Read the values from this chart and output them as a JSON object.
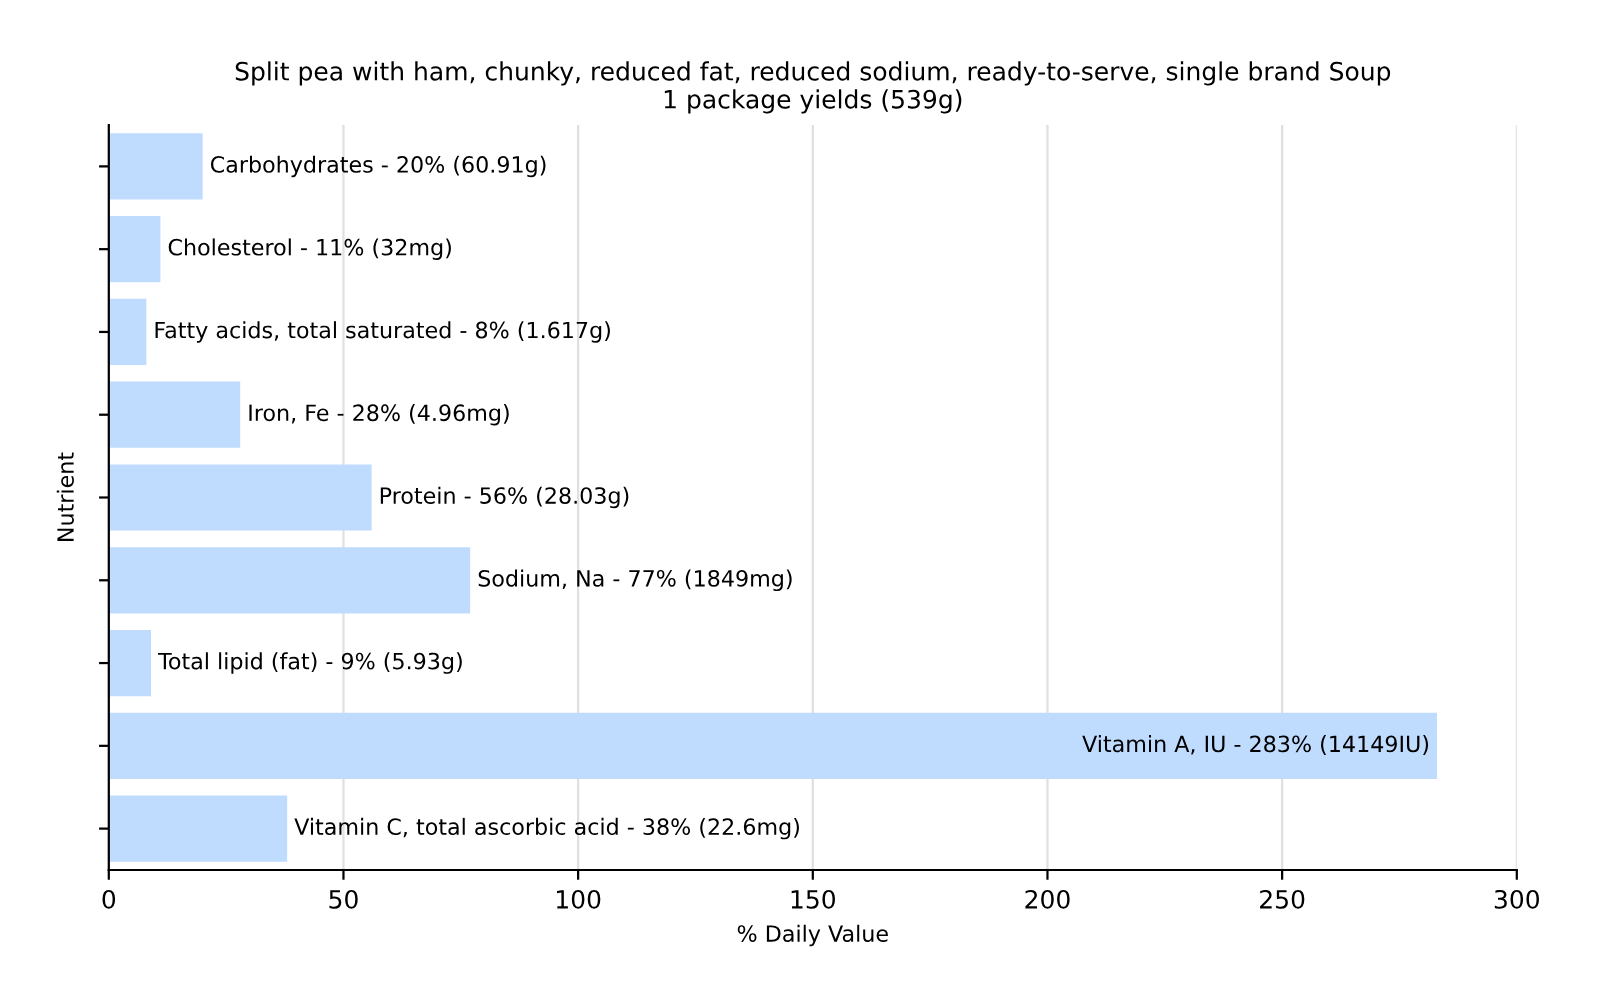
{
  "chart_data": {
    "type": "bar",
    "orientation": "horizontal",
    "title": "Split pea with ham, chunky, reduced fat, reduced sodium, ready-to-serve, single brand Soup\n1 package yields (539g)",
    "xlabel": "% Daily Value",
    "ylabel": "Nutrient",
    "categories": [
      null,
      null,
      null,
      null,
      null,
      null,
      null,
      null,
      null
    ],
    "values": [
      20,
      11,
      8,
      28,
      56,
      77,
      9,
      283,
      38
    ],
    "annotations": [
      {
        "text": "Carbohydrates - 20% (60.91g)",
        "x": 20
      },
      {
        "text": "Cholesterol - 11% (32mg)",
        "x": 11
      },
      {
        "text": "Fatty acids, total saturated - 8% (1.617g)",
        "x": 8
      },
      {
        "text": "Iron, Fe - 28% (4.96mg)",
        "x": 28
      },
      {
        "text": "Protein - 56% (28.03g)",
        "x": 56
      },
      {
        "text": "Sodium, Na - 77% (1849mg)",
        "x": 77
      },
      {
        "text": "Total lipid (fat) - 9% (5.93g)",
        "x": 9
      },
      {
        "text": "Vitamin A, IU - 283% (14149IU)",
        "x": 283
      },
      {
        "text": "Vitamin C, total ascorbic acid - 38% (22.6mg)",
        "x": 38
      }
    ],
    "color": "#bfdcff",
    "xlim": [
      0,
      300
    ],
    "xticks": [
      0,
      50,
      100,
      150,
      200,
      250,
      300
    ],
    "grid": "x",
    "legend": false
  }
}
